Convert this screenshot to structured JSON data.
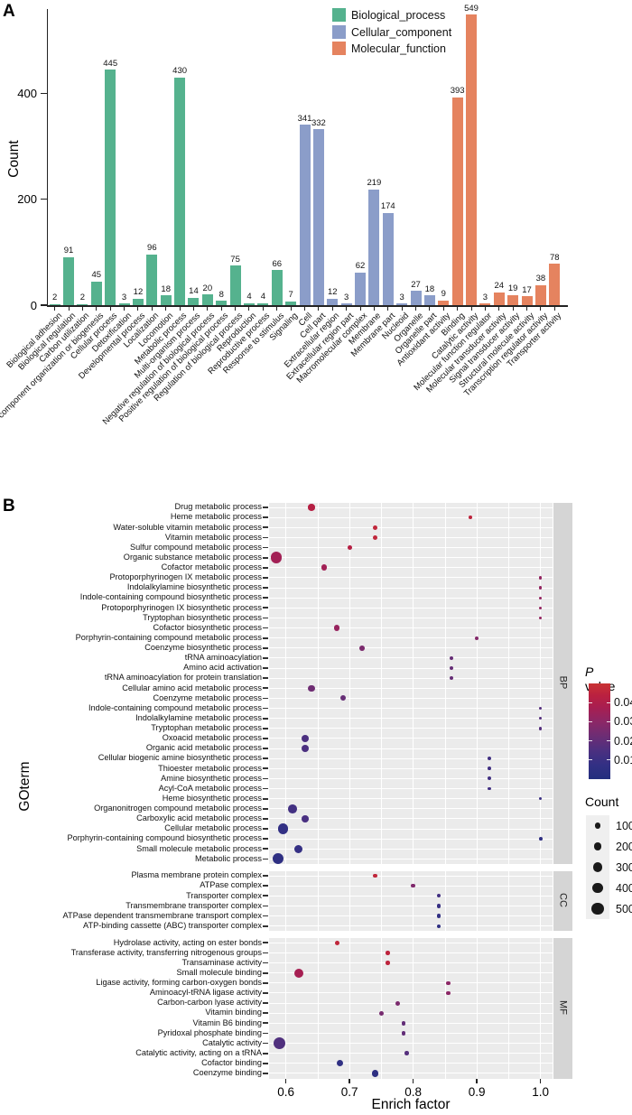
{
  "chart_data": [
    {
      "type": "bar",
      "panel_label": "A",
      "title": "",
      "xlabel": "",
      "ylabel": "Count",
      "y_ticks": [
        0,
        200,
        400
      ],
      "ylim": [
        0,
        570
      ],
      "grid": false,
      "legend_position": "top-inside",
      "groups": [
        "Biological_process",
        "Cellular_component",
        "Molecular_function"
      ],
      "group_colors": [
        "#55b28e",
        "#8b9dc9",
        "#e5835f"
      ],
      "bars": [
        {
          "category": "Biological adhesion",
          "group": 0,
          "value": 2
        },
        {
          "category": "Biological regulation",
          "group": 0,
          "value": 91
        },
        {
          "category": "Carbon utilization",
          "group": 0,
          "value": 2
        },
        {
          "category": "Cellular component organization or biogenesis",
          "group": 0,
          "value": 45
        },
        {
          "category": "Cellular process",
          "group": 0,
          "value": 445
        },
        {
          "category": "Detoxification",
          "group": 0,
          "value": 3
        },
        {
          "category": "Developmental process",
          "group": 0,
          "value": 12
        },
        {
          "category": "Localization",
          "group": 0,
          "value": 96
        },
        {
          "category": "Locomotion",
          "group": 0,
          "value": 18
        },
        {
          "category": "Metabolic process",
          "group": 0,
          "value": 430
        },
        {
          "category": "Multi-organism process",
          "group": 0,
          "value": 14
        },
        {
          "category": "Negative regulation of biological process",
          "group": 0,
          "value": 20
        },
        {
          "category": "Positive regulation of biological process",
          "group": 0,
          "value": 8
        },
        {
          "category": "Regulation of biological process",
          "group": 0,
          "value": 75
        },
        {
          "category": "Reproduction",
          "group": 0,
          "value": 4
        },
        {
          "category": "Reproductive process",
          "group": 0,
          "value": 4
        },
        {
          "category": "Response to stimulus",
          "group": 0,
          "value": 66
        },
        {
          "category": "Signaling",
          "group": 0,
          "value": 7
        },
        {
          "category": "Cell",
          "group": 1,
          "value": 341
        },
        {
          "category": "Cell part",
          "group": 1,
          "value": 332
        },
        {
          "category": "Extracellular region",
          "group": 1,
          "value": 12
        },
        {
          "category": "Extracellular region part",
          "group": 1,
          "value": 3
        },
        {
          "category": "Macromolecular complex",
          "group": 1,
          "value": 62
        },
        {
          "category": "Membrane",
          "group": 1,
          "value": 219
        },
        {
          "category": "Membrane part",
          "group": 1,
          "value": 174
        },
        {
          "category": "Nucleoid",
          "group": 1,
          "value": 3
        },
        {
          "category": "Organelle",
          "group": 1,
          "value": 27
        },
        {
          "category": "Organelle part",
          "group": 1,
          "value": 18
        },
        {
          "category": "Antioxidant activity",
          "group": 2,
          "value": 9
        },
        {
          "category": "Binding",
          "group": 2,
          "value": 393
        },
        {
          "category": "Catalytic activity",
          "group": 2,
          "value": 549
        },
        {
          "category": "Molecular function regulator",
          "group": 2,
          "value": 3
        },
        {
          "category": "Molecular transducer activity",
          "group": 2,
          "value": 24
        },
        {
          "category": "Signal transducer activity",
          "group": 2,
          "value": 19
        },
        {
          "category": "Structural molecule activity",
          "group": 2,
          "value": 17
        },
        {
          "category": "Transcription regulator activity",
          "group": 2,
          "value": 38
        },
        {
          "category": "Transporter activity",
          "group": 2,
          "value": 78
        }
      ]
    },
    {
      "type": "scatter",
      "panel_label": "B",
      "xlabel": "Enrich factor",
      "ylabel": "GOterm",
      "x_ticks": [
        0.6,
        0.7,
        0.8,
        0.9,
        1.0
      ],
      "xlim": [
        0.57,
        1.02
      ],
      "grid": true,
      "color_legend": {
        "title_italic": "P",
        "title_rest": " value",
        "ticks": [
          0.04,
          0.03,
          0.02,
          0.01
        ],
        "domain": [
          0,
          0.05
        ],
        "gradient_stops": [
          {
            "t": 0.0,
            "c": "#232e7e"
          },
          {
            "t": 0.15,
            "c": "#333084"
          },
          {
            "t": 0.3,
            "c": "#4c3080"
          },
          {
            "t": 0.45,
            "c": "#6d2d74"
          },
          {
            "t": 0.6,
            "c": "#8c2766"
          },
          {
            "t": 0.75,
            "c": "#a81e51"
          },
          {
            "t": 0.87,
            "c": "#ba2040"
          },
          {
            "t": 1.0,
            "c": "#c93334"
          }
        ]
      },
      "size_legend": {
        "title": "Count",
        "values": [
          100,
          200,
          300,
          400,
          500
        ]
      },
      "facets": [
        {
          "name": "BP",
          "points": [
            {
              "term": "Drug metabolic process",
              "x": 0.64,
              "p": 0.042,
              "count": 120
            },
            {
              "term": "Heme metabolic process",
              "x": 0.89,
              "p": 0.045,
              "count": 15
            },
            {
              "term": "Water-soluble vitamin metabolic process",
              "x": 0.74,
              "p": 0.046,
              "count": 40
            },
            {
              "term": "Vitamin metabolic process",
              "x": 0.74,
              "p": 0.046,
              "count": 45
            },
            {
              "term": "Sulfur compound metabolic process",
              "x": 0.7,
              "p": 0.042,
              "count": 35
            },
            {
              "term": "Organic substance metabolic process",
              "x": 0.585,
              "p": 0.036,
              "count": 450
            },
            {
              "term": "Cofactor metabolic process",
              "x": 0.66,
              "p": 0.036,
              "count": 105
            },
            {
              "term": "Protoporphyrinogen IX metabolic process",
              "x": 1.0,
              "p": 0.032,
              "count": 8
            },
            {
              "term": "Indolalkylamine biosynthetic process",
              "x": 1.0,
              "p": 0.032,
              "count": 8
            },
            {
              "term": "Indole-containing compound biosynthetic process",
              "x": 1.0,
              "p": 0.032,
              "count": 8
            },
            {
              "term": "Protoporphyrinogen IX biosynthetic process",
              "x": 1.0,
              "p": 0.032,
              "count": 8
            },
            {
              "term": "Tryptophan biosynthetic process",
              "x": 1.0,
              "p": 0.032,
              "count": 8
            },
            {
              "term": "Cofactor biosynthetic process",
              "x": 0.68,
              "p": 0.033,
              "count": 80
            },
            {
              "term": "Porphyrin-containing compound metabolic process",
              "x": 0.9,
              "p": 0.028,
              "count": 20
            },
            {
              "term": "Coenzyme biosynthetic process",
              "x": 0.72,
              "p": 0.026,
              "count": 60
            },
            {
              "term": "tRNA aminoacylation",
              "x": 0.86,
              "p": 0.021,
              "count": 22
            },
            {
              "term": "Amino acid activation",
              "x": 0.86,
              "p": 0.021,
              "count": 22
            },
            {
              "term": "tRNA aminoacylation for protein translation",
              "x": 0.86,
              "p": 0.021,
              "count": 22
            },
            {
              "term": "Cellular amino acid metabolic process",
              "x": 0.64,
              "p": 0.023,
              "count": 120
            },
            {
              "term": "Coenzyme metabolic process",
              "x": 0.69,
              "p": 0.021,
              "count": 70
            },
            {
              "term": "Indole-containing compound metabolic process",
              "x": 1.0,
              "p": 0.017,
              "count": 12
            },
            {
              "term": "Indolalkylamine metabolic process",
              "x": 1.0,
              "p": 0.017,
              "count": 12
            },
            {
              "term": "Tryptophan metabolic process",
              "x": 1.0,
              "p": 0.017,
              "count": 12
            },
            {
              "term": "Oxoacid metabolic process",
              "x": 0.63,
              "p": 0.015,
              "count": 150
            },
            {
              "term": "Organic acid metabolic process",
              "x": 0.63,
              "p": 0.015,
              "count": 150
            },
            {
              "term": "Cellular biogenic amine biosynthetic process",
              "x": 0.92,
              "p": 0.012,
              "count": 20
            },
            {
              "term": "Thioester metabolic process",
              "x": 0.92,
              "p": 0.012,
              "count": 18
            },
            {
              "term": "Amine biosynthetic process",
              "x": 0.92,
              "p": 0.012,
              "count": 20
            },
            {
              "term": "Acyl-CoA metabolic process",
              "x": 0.92,
              "p": 0.012,
              "count": 18
            },
            {
              "term": "Heme biosynthetic process",
              "x": 1.0,
              "p": 0.01,
              "count": 12
            },
            {
              "term": "Organonitrogen compound metabolic process",
              "x": 0.61,
              "p": 0.012,
              "count": 245
            },
            {
              "term": "Carboxylic acid metabolic process",
              "x": 0.63,
              "p": 0.014,
              "count": 135
            },
            {
              "term": "Cellular metabolic process",
              "x": 0.595,
              "p": 0.007,
              "count": 350
            },
            {
              "term": "Porphyrin-containing compound biosynthetic process",
              "x": 1.0,
              "p": 0.006,
              "count": 18
            },
            {
              "term": "Small molecule metabolic process",
              "x": 0.62,
              "p": 0.008,
              "count": 225
            },
            {
              "term": "Metabolic process",
              "x": 0.588,
              "p": 0.005,
              "count": 400
            }
          ]
        },
        {
          "name": "CC",
          "points": [
            {
              "term": "Plasma membrane protein complex",
              "x": 0.74,
              "p": 0.046,
              "count": 25
            },
            {
              "term": "ATPase complex",
              "x": 0.8,
              "p": 0.027,
              "count": 30
            },
            {
              "term": "Transporter complex",
              "x": 0.84,
              "p": 0.012,
              "count": 25
            },
            {
              "term": "Transmembrane transporter complex",
              "x": 0.84,
              "p": 0.009,
              "count": 25
            },
            {
              "term": "ATPase dependent transmembrane transport complex",
              "x": 0.84,
              "p": 0.007,
              "count": 25
            },
            {
              "term": "ATP-binding cassette (ABC) transporter complex",
              "x": 0.84,
              "p": 0.006,
              "count": 25
            }
          ]
        },
        {
          "name": "MF",
          "points": [
            {
              "term": "Hydrolase activity, acting on ester bonds",
              "x": 0.68,
              "p": 0.046,
              "count": 40
            },
            {
              "term": "Transferase activity, transferring nitrogenous groups",
              "x": 0.76,
              "p": 0.045,
              "count": 30
            },
            {
              "term": "Transaminase activity",
              "x": 0.76,
              "p": 0.045,
              "count": 30
            },
            {
              "term": "Small molecule binding",
              "x": 0.62,
              "p": 0.037,
              "count": 285
            },
            {
              "term": "Ligase activity, forming carbon-oxygen bonds",
              "x": 0.855,
              "p": 0.03,
              "count": 25
            },
            {
              "term": "Aminoacyl-tRNA ligase activity",
              "x": 0.855,
              "p": 0.03,
              "count": 25
            },
            {
              "term": "Carbon-carbon lyase activity",
              "x": 0.775,
              "p": 0.026,
              "count": 40
            },
            {
              "term": "Vitamin binding",
              "x": 0.75,
              "p": 0.025,
              "count": 40
            },
            {
              "term": "Vitamin B6 binding",
              "x": 0.785,
              "p": 0.02,
              "count": 30
            },
            {
              "term": "Pyridoxal phosphate binding",
              "x": 0.785,
              "p": 0.02,
              "count": 30
            },
            {
              "term": "Catalytic activity",
              "x": 0.59,
              "p": 0.016,
              "count": 549
            },
            {
              "term": "Catalytic activity, acting on a tRNA",
              "x": 0.79,
              "p": 0.017,
              "count": 30
            },
            {
              "term": "Cofactor binding",
              "x": 0.685,
              "p": 0.006,
              "count": 115
            },
            {
              "term": "Coenzyme binding",
              "x": 0.74,
              "p": 0.005,
              "count": 135
            }
          ]
        }
      ]
    }
  ]
}
